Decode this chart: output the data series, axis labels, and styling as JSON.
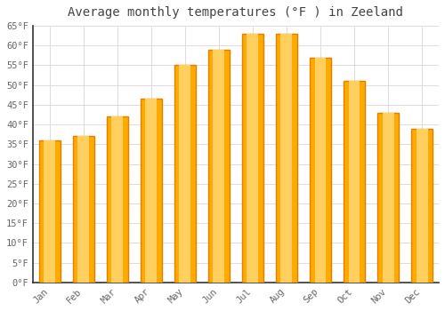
{
  "title": "Average monthly temperatures (°F ) in Zeeland",
  "categories": [
    "Jan",
    "Feb",
    "Mar",
    "Apr",
    "May",
    "Jun",
    "Jul",
    "Aug",
    "Sep",
    "Oct",
    "Nov",
    "Dec"
  ],
  "values": [
    36.0,
    37.0,
    42.0,
    46.5,
    55.0,
    59.0,
    63.0,
    63.0,
    57.0,
    51.0,
    43.0,
    39.0
  ],
  "bar_color_main": "#FFAA00",
  "bar_color_light": "#FFD060",
  "bar_color_edge": "#E08000",
  "background_color": "#FFFFFF",
  "grid_color": "#DDDDDD",
  "title_fontsize": 10,
  "tick_fontsize": 7.5,
  "ylim": [
    0,
    65
  ],
  "ytick_step": 5,
  "title_color": "#444444",
  "tick_color": "#666666"
}
